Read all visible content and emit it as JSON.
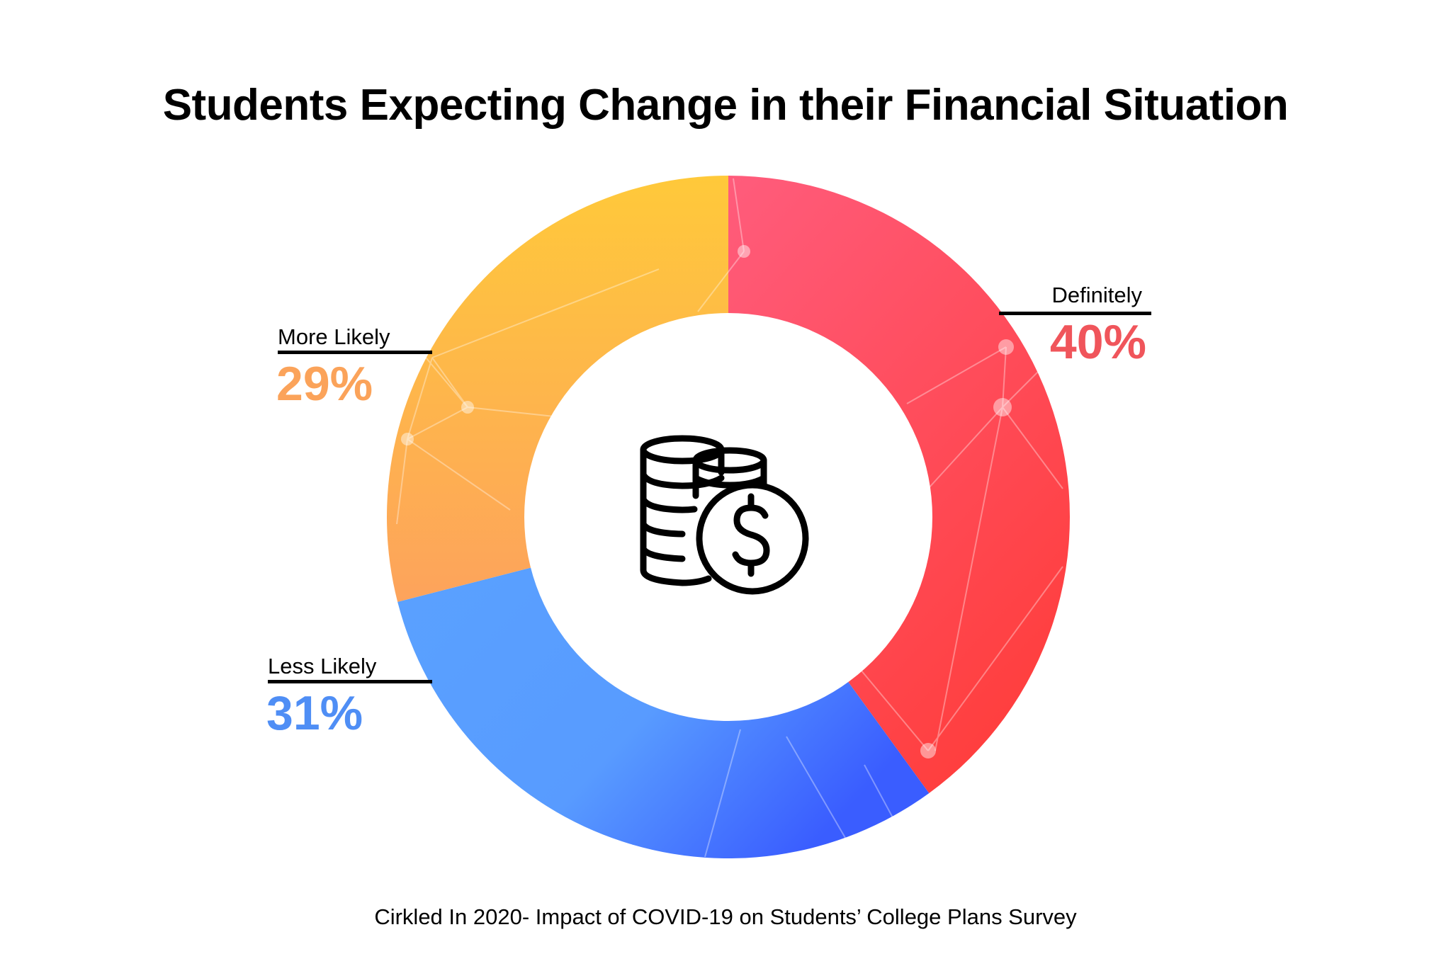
{
  "chart_data": {
    "type": "pie",
    "title": "Students Expecting Change in their Financial Situation",
    "slices": [
      {
        "label": "Definitely",
        "value": 40,
        "value_label": "40%",
        "color": "#ff4b5f"
      },
      {
        "label": "Less Likely",
        "value": 31,
        "value_label": "31%",
        "color": "#5b9dff"
      },
      {
        "label": "More Likely",
        "value": 29,
        "value_label": "29%",
        "color": "#fdb446"
      }
    ],
    "donut": true,
    "center_icon": "coins-dollar-icon",
    "value_colors": {
      "Definitely": "#f0555b",
      "Less Likely": "#4f8ef5",
      "More Likely": "#fba35a"
    }
  },
  "source": "Cirkled In 2020- Impact of COVID-19 on Students’ College Plans Survey"
}
